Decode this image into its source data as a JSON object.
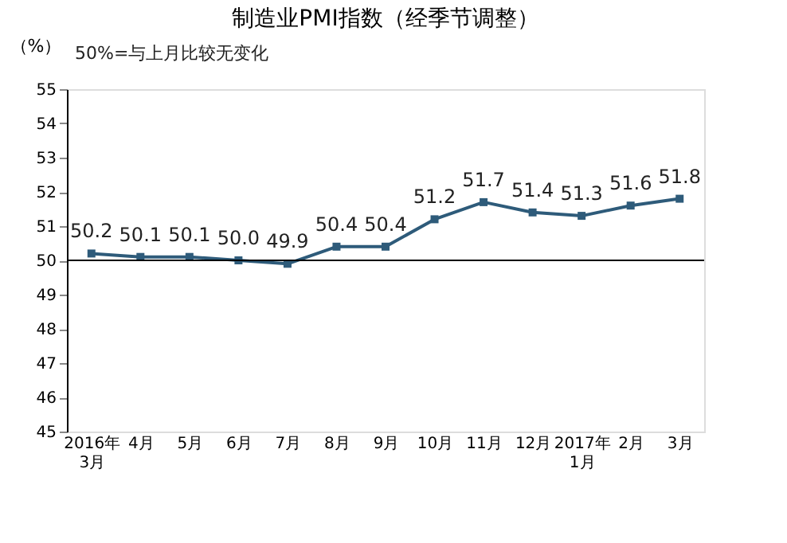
{
  "chart_data": {
    "type": "line",
    "title": "制造业PMI指数（经季节调整）",
    "ylabel": "（%）",
    "annotations": [
      "50%=与上月比较无变化"
    ],
    "categories": [
      "2016年\n3月",
      "4月",
      "5月",
      "6月",
      "7月",
      "8月",
      "9月",
      "10月",
      "11月",
      "12月",
      "2017年\n1月",
      "2月",
      "3月"
    ],
    "series": [
      {
        "color": "#2e5b7a",
        "values": [
          50.2,
          50.1,
          50.1,
          50.0,
          49.9,
          50.4,
          50.4,
          51.2,
          51.7,
          51.4,
          51.3,
          51.6,
          51.8
        ]
      }
    ],
    "value_labels": [
      "50.2",
      "50.1",
      "50.1",
      "50.0",
      "49.9",
      "50.4",
      "50.4",
      "51.2",
      "51.7",
      "51.4",
      "51.3",
      "51.6",
      "51.8"
    ],
    "ylim": [
      45,
      55
    ],
    "yticks": [
      45,
      46,
      47,
      48,
      49,
      50,
      51,
      52,
      53,
      54,
      55
    ],
    "ref_lines": [
      {
        "axis": "y",
        "value": 50,
        "color": "#000000"
      }
    ],
    "marker": "square",
    "line_style": "solid",
    "grid": false
  }
}
